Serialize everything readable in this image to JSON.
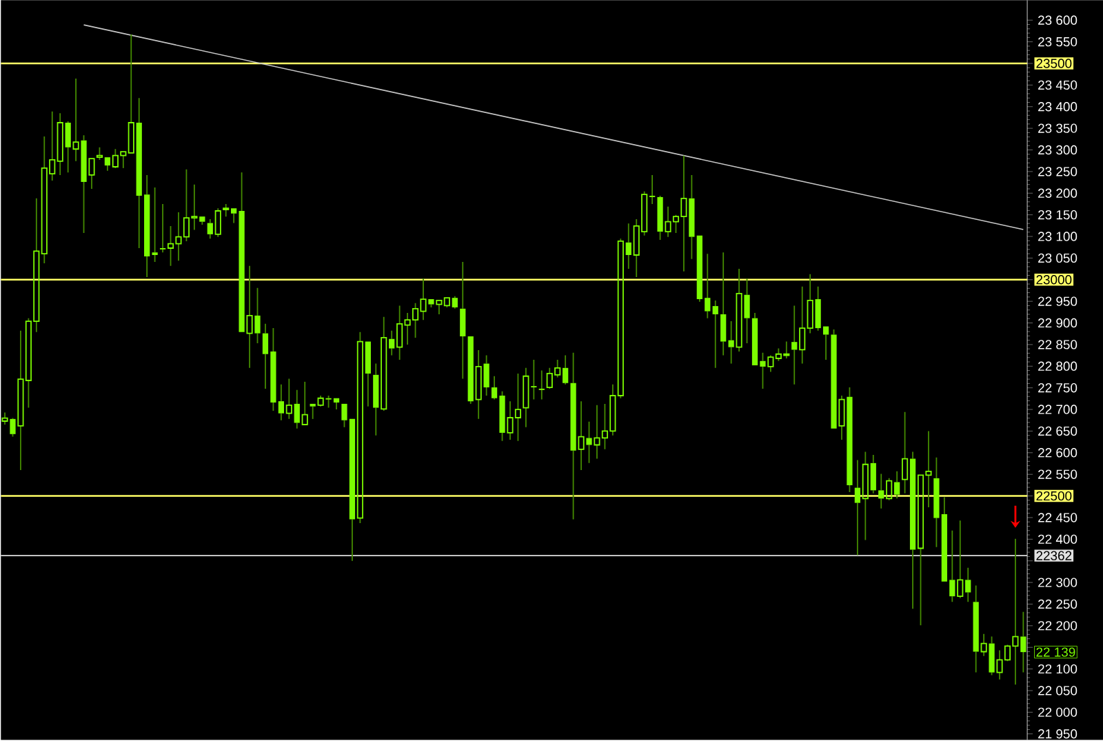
{
  "chart_data": {
    "type": "candlestick",
    "color": "#7cfc00",
    "tick_labels": "y",
    "categories": [
      null,
      null,
      null,
      null,
      null,
      null,
      null,
      null,
      null,
      null,
      null,
      null,
      null,
      null,
      null,
      null,
      null,
      null,
      null,
      null,
      null,
      null,
      null,
      null,
      null,
      null,
      null,
      null,
      null,
      null,
      null,
      null,
      null,
      null,
      null,
      null,
      null,
      null,
      null,
      null,
      null,
      null,
      null,
      null,
      null,
      null,
      null,
      null,
      null,
      null,
      null,
      null,
      null,
      null,
      null,
      null,
      null,
      null,
      null,
      null,
      null,
      null,
      null,
      null,
      null,
      null,
      null,
      null,
      null,
      null,
      null,
      null,
      null,
      null,
      null,
      null,
      null,
      null,
      null,
      null,
      null,
      null,
      null,
      null,
      null,
      null,
      null,
      null,
      null,
      null,
      null,
      null,
      null,
      null,
      null,
      null,
      null,
      null,
      null,
      null,
      null,
      null,
      null,
      null,
      null,
      null,
      null,
      null,
      null,
      null,
      null,
      null,
      null,
      null,
      null,
      null,
      null,
      null,
      null,
      null,
      null,
      null,
      null,
      null,
      null,
      null,
      null,
      null,
      null,
      null
    ],
    "ohlc": [
      [
        22673,
        22693,
        22665,
        22680
      ],
      [
        22678,
        22680,
        22637,
        22643
      ],
      [
        22662,
        22882,
        22560,
        22770
      ],
      [
        22767,
        22911,
        22704,
        22904
      ],
      [
        22904,
        23188,
        22879,
        23066
      ],
      [
        23060,
        23331,
        23038,
        23258
      ],
      [
        23245,
        23389,
        23229,
        23277
      ],
      [
        23274,
        23385,
        23242,
        23363
      ],
      [
        23363,
        23366,
        23248,
        23306
      ],
      [
        23302,
        23465,
        23274,
        23318
      ],
      [
        23322,
        23334,
        23108,
        23226
      ],
      [
        23242,
        23280,
        23210,
        23280
      ],
      [
        23283,
        23306,
        23277,
        23287
      ],
      [
        23283,
        23283,
        23252,
        23264
      ],
      [
        23261,
        23302,
        23258,
        23287
      ],
      [
        23287,
        23296,
        23258,
        23296
      ],
      [
        23293,
        23567,
        23293,
        23363
      ],
      [
        23363,
        23420,
        23073,
        23194
      ],
      [
        23197,
        23242,
        23006,
        23054
      ],
      [
        23063,
        23213,
        23041,
        23057
      ],
      [
        23073,
        23175,
        23063,
        23070
      ],
      [
        23073,
        23124,
        23032,
        23083
      ],
      [
        23083,
        23156,
        23044,
        23099
      ],
      [
        23099,
        23255,
        23089,
        23143
      ],
      [
        23143,
        23220,
        23115,
        23146
      ],
      [
        23146,
        23146,
        23127,
        23134
      ],
      [
        23131,
        23140,
        23095,
        23105
      ],
      [
        23105,
        23165,
        23099,
        23159
      ],
      [
        23162,
        23175,
        23146,
        23165
      ],
      [
        23165,
        23165,
        23131,
        23153
      ],
      [
        23159,
        23248,
        22879,
        22879
      ],
      [
        22876,
        23032,
        22796,
        22917
      ],
      [
        22917,
        22981,
        22853,
        22876
      ],
      [
        22876,
        22898,
        22748,
        22828
      ],
      [
        22834,
        22888,
        22697,
        22716
      ],
      [
        22719,
        22758,
        22675,
        22691
      ],
      [
        22691,
        22771,
        22678,
        22710
      ],
      [
        22713,
        22745,
        22656,
        22669
      ],
      [
        22665,
        22764,
        22665,
        22688
      ],
      [
        22713,
        22713,
        22678,
        22707
      ],
      [
        22710,
        22732,
        22707,
        22726
      ],
      [
        22726,
        22732,
        22704,
        22723
      ],
      [
        22726,
        22726,
        22700,
        22716
      ],
      [
        22713,
        22713,
        22659,
        22675
      ],
      [
        22678,
        22678,
        22350,
        22446
      ],
      [
        22449,
        22879,
        22437,
        22857
      ],
      [
        22857,
        22857,
        22707,
        22783
      ],
      [
        22780,
        22806,
        22640,
        22704
      ],
      [
        22701,
        22914,
        22697,
        22866
      ],
      [
        22863,
        22882,
        22825,
        22841
      ],
      [
        22844,
        22940,
        22815,
        22898
      ],
      [
        22895,
        22923,
        22850,
        22907
      ],
      [
        22907,
        22946,
        22866,
        22933
      ],
      [
        22927,
        23003,
        22907,
        22955
      ],
      [
        22955,
        22955,
        22936,
        22943
      ],
      [
        22943,
        22952,
        22920,
        22952
      ],
      [
        22940,
        22958,
        22936,
        22958
      ],
      [
        22958,
        22962,
        22933,
        22936
      ],
      [
        22933,
        23041,
        22771,
        22869
      ],
      [
        22869,
        22869,
        22713,
        22719
      ],
      [
        22723,
        22837,
        22678,
        22799
      ],
      [
        22806,
        22825,
        22732,
        22751
      ],
      [
        22751,
        22777,
        22723,
        22726
      ],
      [
        22732,
        22742,
        22627,
        22646
      ],
      [
        22646,
        22719,
        22630,
        22681
      ],
      [
        22681,
        22783,
        22627,
        22700
      ],
      [
        22704,
        22796,
        22659,
        22777
      ],
      [
        22754,
        22815,
        22723,
        22751
      ],
      [
        22748,
        22790,
        22723,
        22745
      ],
      [
        22751,
        22796,
        22748,
        22783
      ],
      [
        22780,
        22815,
        22774,
        22796
      ],
      [
        22796,
        22825,
        22758,
        22761
      ],
      [
        22761,
        22831,
        22446,
        22605
      ],
      [
        22608,
        22719,
        22560,
        22637
      ],
      [
        22634,
        22672,
        22576,
        22618
      ],
      [
        22618,
        22710,
        22586,
        22634
      ],
      [
        22634,
        22713,
        22608,
        22650
      ],
      [
        22650,
        22758,
        22640,
        22732
      ],
      [
        22732,
        23095,
        22726,
        23089
      ],
      [
        23086,
        23130,
        23025,
        23057
      ],
      [
        23057,
        23140,
        23006,
        23124
      ],
      [
        23111,
        23204,
        23102,
        23197
      ],
      [
        23194,
        23242,
        23175,
        23191
      ],
      [
        23191,
        23194,
        23092,
        23111
      ],
      [
        23111,
        23169,
        23099,
        23134
      ],
      [
        23134,
        23150,
        23108,
        23146
      ],
      [
        23146,
        23287,
        23019,
        23188
      ],
      [
        23188,
        23242,
        23048,
        23099
      ],
      [
        23102,
        23102,
        22949,
        22955
      ],
      [
        22958,
        23060,
        22911,
        22927
      ],
      [
        22939,
        22952,
        22796,
        22920
      ],
      [
        22920,
        23063,
        22825,
        22857
      ],
      [
        22860,
        22904,
        22806,
        22844
      ],
      [
        22844,
        23025,
        22834,
        22968
      ],
      [
        22965,
        23003,
        22853,
        22911
      ],
      [
        22911,
        22923,
        22802,
        22802
      ],
      [
        22812,
        22831,
        22748,
        22799
      ],
      [
        22799,
        22825,
        22787,
        22821
      ],
      [
        22818,
        22841,
        22812,
        22828
      ],
      [
        22825,
        22857,
        22818,
        22828
      ],
      [
        22856,
        22940,
        22758,
        22838
      ],
      [
        22838,
        22984,
        22806,
        22888
      ],
      [
        22888,
        23013,
        22876,
        22952
      ],
      [
        22955,
        22984,
        22882,
        22888
      ],
      [
        22892,
        22892,
        22815,
        22873
      ],
      [
        22873,
        22885,
        22656,
        22656
      ],
      [
        22662,
        22732,
        22630,
        22723
      ],
      [
        22729,
        22751,
        22509,
        22525
      ],
      [
        22519,
        22583,
        22363,
        22484
      ],
      [
        22494,
        22602,
        22398,
        22573
      ],
      [
        22576,
        22595,
        22506,
        22513
      ],
      [
        22513,
        22551,
        22471,
        22494
      ],
      [
        22494,
        22541,
        22490,
        22535
      ],
      [
        22532,
        22557,
        22494,
        22503
      ],
      [
        22538,
        22694,
        22506,
        22586
      ],
      [
        22586,
        22602,
        22239,
        22376
      ],
      [
        22379,
        22548,
        22201,
        22548
      ],
      [
        22548,
        22650,
        22474,
        22557
      ],
      [
        22541,
        22589,
        22382,
        22449
      ],
      [
        22458,
        22497,
        22302,
        22302
      ],
      [
        22306,
        22420,
        22255,
        22268
      ],
      [
        22268,
        22443,
        22264,
        22306
      ],
      [
        22306,
        22334,
        22255,
        22277
      ],
      [
        22255,
        22293,
        22092,
        22140
      ],
      [
        22140,
        22181,
        22130,
        22159
      ],
      [
        22159,
        22175,
        22086,
        22092
      ],
      [
        22092,
        22143,
        22076,
        22121
      ],
      [
        22121,
        22156,
        22118,
        22153
      ],
      [
        22153,
        22401,
        22064,
        22175
      ],
      [
        22175,
        22232,
        22092,
        22139
      ]
    ],
    "series": [
      {
        "type": "line",
        "color": "#c8c8c8",
        "values": [
          null,
          null,
          null,
          null,
          null,
          null,
          null,
          null,
          null,
          null,
          23589,
          null,
          null,
          null,
          null,
          null,
          null,
          null,
          null,
          null,
          null,
          null,
          null,
          null,
          null,
          null,
          null,
          null,
          null,
          null,
          null,
          null,
          null,
          null,
          null,
          null,
          null,
          null,
          null,
          null,
          null,
          null,
          null,
          null,
          null,
          null,
          null,
          null,
          null,
          null,
          null,
          null,
          null,
          null,
          null,
          null,
          null,
          null,
          null,
          null,
          null,
          null,
          null,
          null,
          null,
          null,
          null,
          null,
          null,
          null,
          null,
          null,
          null,
          null,
          null,
          null,
          null,
          null,
          null,
          null,
          null,
          null,
          null,
          null,
          null,
          null,
          null,
          null,
          null,
          null,
          null,
          null,
          null,
          null,
          null,
          null,
          null,
          null,
          null,
          null,
          null,
          null,
          null,
          null,
          null,
          null,
          null,
          null,
          null,
          null,
          null,
          null,
          null,
          null,
          null,
          null,
          null,
          null,
          null,
          null,
          null,
          null,
          null,
          null,
          null,
          null,
          null,
          null,
          null,
          23116
        ]
      }
    ],
    "ylim": [
      21936,
      23646
    ],
    "yticks": [
      {
        "value": 21950,
        "label": "21 950"
      },
      {
        "value": 22000,
        "label": "22 000"
      },
      {
        "value": 22050,
        "label": "22 050"
      },
      {
        "value": 22100,
        "label": "22 100"
      },
      {
        "value": 22150,
        "label": null
      },
      {
        "value": 22200,
        "label": "22 200"
      },
      {
        "value": 22250,
        "label": "22 250"
      },
      {
        "value": 22300,
        "label": "22 300"
      },
      {
        "value": 22350,
        "label": null
      },
      {
        "value": 22400,
        "label": "22 400"
      },
      {
        "value": 22450,
        "label": "22 450"
      },
      {
        "value": 22500,
        "label": null
      },
      {
        "value": 22550,
        "label": "22 550"
      },
      {
        "value": 22600,
        "label": "22 600"
      },
      {
        "value": 22650,
        "label": "22 650"
      },
      {
        "value": 22700,
        "label": "22 700"
      },
      {
        "value": 22750,
        "label": "22 750"
      },
      {
        "value": 22800,
        "label": "22 800"
      },
      {
        "value": 22850,
        "label": "22 850"
      },
      {
        "value": 22900,
        "label": "22 900"
      },
      {
        "value": 22950,
        "label": "22 950"
      },
      {
        "value": 23000,
        "label": null
      },
      {
        "value": 23050,
        "label": "23 050"
      },
      {
        "value": 23100,
        "label": "23 100"
      },
      {
        "value": 23150,
        "label": "23 150"
      },
      {
        "value": 23200,
        "label": "23 200"
      },
      {
        "value": 23250,
        "label": "23 250"
      },
      {
        "value": 23300,
        "label": "23 300"
      },
      {
        "value": 23350,
        "label": "23 350"
      },
      {
        "value": 23400,
        "label": "23 400"
      },
      {
        "value": 23450,
        "label": "23 450"
      },
      {
        "value": 23500,
        "label": null
      },
      {
        "value": 23550,
        "label": "23 550"
      },
      {
        "value": 23600,
        "label": "23 600"
      }
    ],
    "ref_lines": [
      {
        "axis": "y",
        "value": 23500,
        "label": "23500",
        "color": "#ffff66"
      },
      {
        "axis": "y",
        "value": 23000,
        "label": "23000",
        "color": "#ffff66"
      },
      {
        "axis": "y",
        "value": 22500,
        "label": "22500",
        "color": "#ffff66"
      },
      {
        "axis": "y",
        "value": 22362,
        "label": "22362",
        "color": "#e0e0e0"
      }
    ],
    "annotations": [
      "22 139"
    ]
  }
}
